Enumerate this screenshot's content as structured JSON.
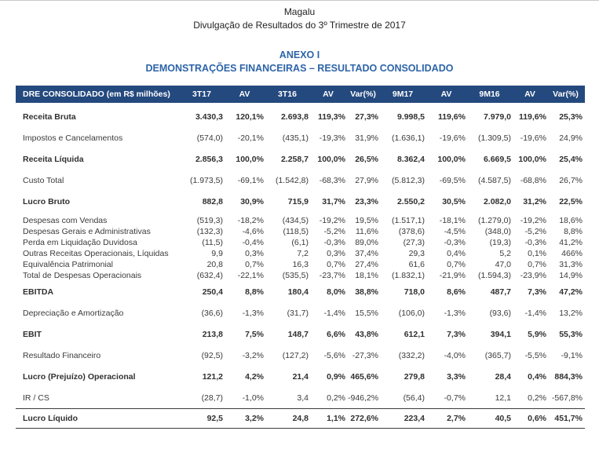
{
  "header": {
    "company": "Magalu",
    "subtitle": "Divulgação de Resultados do 3º Trimestre de 2017",
    "annex_title": "ANEXO I",
    "annex_subtitle": "DEMONSTRAÇÕES FINANCEIRAS – RESULTADO CONSOLIDADO"
  },
  "colors": {
    "table_header_bg": "#24497E",
    "title_blue": "#2D64A8"
  },
  "table": {
    "columns": [
      "DRE CONSOLIDADO (em R$ milhões)",
      "3T17",
      "AV",
      "3T16",
      "AV",
      "Var(%)",
      "9M17",
      "AV",
      "9M16",
      "AV",
      "Var(%)"
    ],
    "rows": [
      {
        "label": "Receita Bruta",
        "bold": true,
        "spacing": "major first",
        "values": [
          "3.430,3",
          "120,1%",
          "2.693,8",
          "119,3%",
          "27,3%",
          "9.998,5",
          "119,6%",
          "7.979,0",
          "119,6%",
          "25,3%"
        ]
      },
      {
        "label": "Impostos e Cancelamentos",
        "bold": false,
        "spacing": "major",
        "values": [
          "(574,0)",
          "-20,1%",
          "(435,1)",
          "-19,3%",
          "31,9%",
          "(1.636,1)",
          "-19,6%",
          "(1.309,5)",
          "-19,6%",
          "24,9%"
        ]
      },
      {
        "label": "Receita Líquida",
        "bold": true,
        "spacing": "major",
        "values": [
          "2.856,3",
          "100,0%",
          "2.258,7",
          "100,0%",
          "26,5%",
          "8.362,4",
          "100,0%",
          "6.669,5",
          "100,0%",
          "25,4%"
        ]
      },
      {
        "label": "Custo Total",
        "bold": false,
        "spacing": "major",
        "values": [
          "(1.973,5)",
          "-69,1%",
          "(1.542,8)",
          "-68,3%",
          "27,9%",
          "(5.812,3)",
          "-69,5%",
          "(4.587,5)",
          "-68,8%",
          "26,7%"
        ]
      },
      {
        "label": "Lucro Bruto",
        "bold": true,
        "spacing": "major",
        "values": [
          "882,8",
          "30,9%",
          "715,9",
          "31,7%",
          "23,3%",
          "2.550,2",
          "30,5%",
          "2.082,0",
          "31,2%",
          "22,5%"
        ]
      },
      {
        "label": "Despesas com Vendas",
        "bold": false,
        "spacing": "tight group-start",
        "values": [
          "(519,3)",
          "-18,2%",
          "(434,5)",
          "-19,2%",
          "19,5%",
          "(1.517,1)",
          "-18,1%",
          "(1.279,0)",
          "-19,2%",
          "18,6%"
        ]
      },
      {
        "label": "Despesas Gerais e Administrativas",
        "bold": false,
        "spacing": "tight",
        "values": [
          "(132,3)",
          "-4,6%",
          "(118,5)",
          "-5,2%",
          "11,6%",
          "(378,6)",
          "-4,5%",
          "(348,0)",
          "-5,2%",
          "8,8%"
        ]
      },
      {
        "label": "Perda em Liquidação Duvidosa",
        "bold": false,
        "spacing": "tight",
        "values": [
          "(11,5)",
          "-0,4%",
          "(6,1)",
          "-0,3%",
          "89,0%",
          "(27,3)",
          "-0,3%",
          "(19,3)",
          "-0,3%",
          "41,2%"
        ]
      },
      {
        "label": "Outras Receitas Operacionais, Líquidas",
        "bold": false,
        "spacing": "tight",
        "values": [
          "9,9",
          "0,3%",
          "7,2",
          "0,3%",
          "37,4%",
          "29,3",
          "0,4%",
          "5,2",
          "0,1%",
          "466%"
        ]
      },
      {
        "label": "Equivalência Patrimonial",
        "bold": false,
        "spacing": "tight",
        "values": [
          "20,8",
          "0,7%",
          "16,3",
          "0,7%",
          "27,4%",
          "61,6",
          "0,7%",
          "47,0",
          "0,7%",
          "31,3%"
        ]
      },
      {
        "label": "Total de Despesas Operacionais",
        "bold": false,
        "spacing": "tight",
        "values": [
          "(632,4)",
          "-22,1%",
          "(535,5)",
          "-23,7%",
          "18,1%",
          "(1.832,1)",
          "-21,9%",
          "(1.594,3)",
          "-23,9%",
          "14,9%"
        ]
      },
      {
        "label": "EBITDA",
        "bold": true,
        "spacing": "major",
        "values": [
          "250,4",
          "8,8%",
          "180,4",
          "8,0%",
          "38,8%",
          "718,0",
          "8,6%",
          "487,7",
          "7,3%",
          "47,2%"
        ]
      },
      {
        "label": "Depreciação e Amortização",
        "bold": false,
        "spacing": "major",
        "values": [
          "(36,6)",
          "-1,3%",
          "(31,7)",
          "-1,4%",
          "15,5%",
          "(106,0)",
          "-1,3%",
          "(93,6)",
          "-1,4%",
          "13,2%"
        ]
      },
      {
        "label": "EBIT",
        "bold": true,
        "spacing": "major",
        "values": [
          "213,8",
          "7,5%",
          "148,7",
          "6,6%",
          "43,8%",
          "612,1",
          "7,3%",
          "394,1",
          "5,9%",
          "55,3%"
        ]
      },
      {
        "label": "Resultado Financeiro",
        "bold": false,
        "spacing": "major",
        "values": [
          "(92,5)",
          "-3,2%",
          "(127,2)",
          "-5,6%",
          "-27,3%",
          "(332,2)",
          "-4,0%",
          "(365,7)",
          "-5,5%",
          "-9,1%"
        ]
      },
      {
        "label": "Lucro (Prejuízo) Operacional",
        "bold": true,
        "spacing": "major",
        "values": [
          "121,2",
          "4,2%",
          "21,4",
          "0,9%",
          "465,6%",
          "279,8",
          "3,3%",
          "28,4",
          "0,4%",
          "884,3%"
        ]
      },
      {
        "label": "IR / CS",
        "bold": false,
        "spacing": "major",
        "values": [
          "(28,7)",
          "-1,0%",
          "3,4",
          "0,2%",
          "-946,2%",
          "(56,4)",
          "-0,7%",
          "12,1",
          "0,2%",
          "-567,8%"
        ]
      },
      {
        "label": "Lucro Líquido",
        "bold": true,
        "spacing": "final",
        "values": [
          "92,5",
          "3,2%",
          "24,8",
          "1,1%",
          "272,6%",
          "223,4",
          "2,7%",
          "40,5",
          "0,6%",
          "451,7%"
        ]
      }
    ]
  }
}
